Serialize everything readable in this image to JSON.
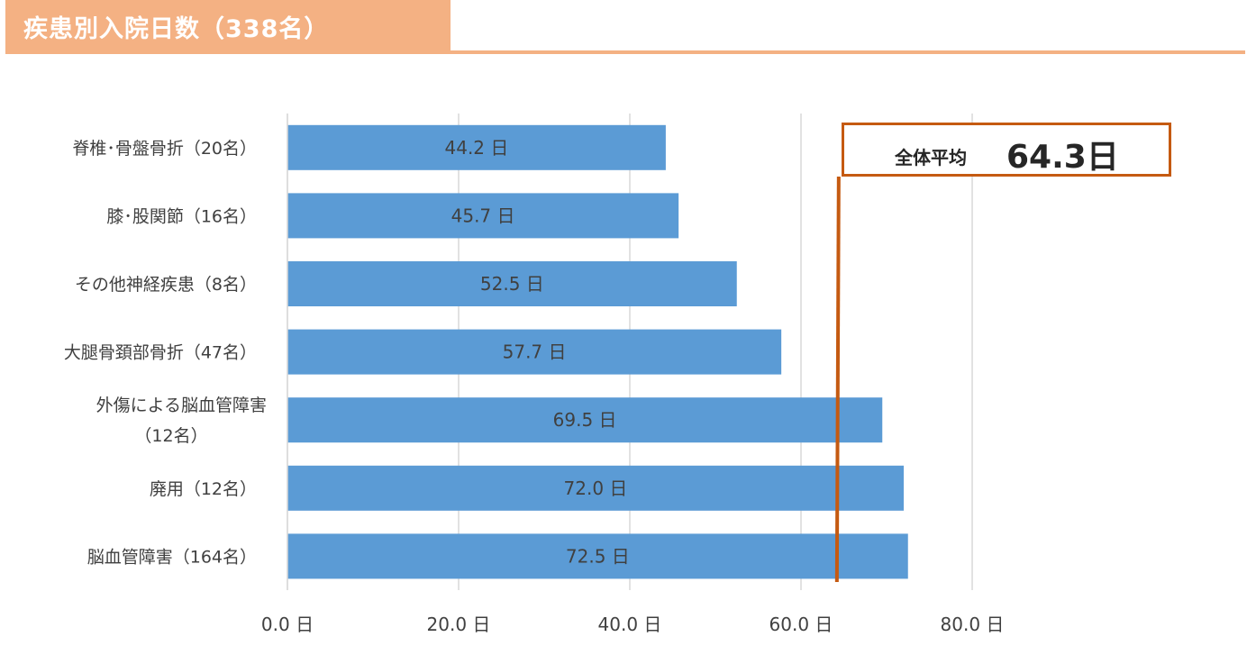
{
  "title": "疾患別入院日数（338名）",
  "average": {
    "label": "全体平均",
    "value_text": "64.3日",
    "value": 64.3,
    "line_color": "#c55a11"
  },
  "colors": {
    "bar": "#5b9bd5",
    "header": "#f4b183",
    "grid": "#d9d9d9",
    "text": "#404040"
  },
  "chart_data": {
    "type": "bar",
    "orientation": "horizontal",
    "categories": [
      [
        "脊椎･骨盤骨折（20名）"
      ],
      [
        "膝･股関節（16名）"
      ],
      [
        "その他神経疾患（8名）"
      ],
      [
        "大腿骨頚部骨折（47名）"
      ],
      [
        "外傷による脳血管障害",
        "（12名）"
      ],
      [
        "廃用（12名）"
      ],
      [
        "脳血管障害（164名）"
      ]
    ],
    "values": [
      44.2,
      45.7,
      52.5,
      57.7,
      69.5,
      72.0,
      72.5
    ],
    "data_labels": [
      "44.2 日",
      "45.7 日",
      "52.5 日",
      "57.7 日",
      "69.5 日",
      "72.0 日",
      "72.5 日"
    ],
    "x_ticks": [
      0,
      20,
      40,
      60,
      80
    ],
    "x_tick_labels": [
      "0.0 日",
      "20.0 日",
      "40.0 日",
      "60.0 日",
      "80.0 日"
    ],
    "xlim": [
      0,
      80
    ],
    "grid": true,
    "xlabel": "",
    "ylabel": ""
  }
}
